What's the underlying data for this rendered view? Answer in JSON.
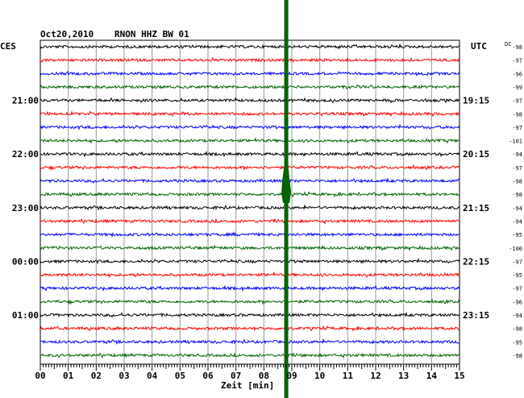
{
  "header": {
    "date": "Oct20,2010",
    "station": "RNON HHZ BW 01",
    "left_tz": "CES",
    "right_tz": "UTC",
    "dc_label": "DC"
  },
  "chart_data": {
    "type": "line",
    "title": "RNON HHZ BW 01",
    "xlabel": "Zeit [min]",
    "x_ticks": [
      "00",
      "01",
      "02",
      "03",
      "04",
      "05",
      "06",
      "07",
      "08",
      "09",
      "10",
      "11",
      "12",
      "13",
      "14",
      "15"
    ],
    "xlim": [
      0,
      15
    ],
    "grid": true,
    "trace_colors": [
      "#000000",
      "#ff0000",
      "#0000ff",
      "#006400"
    ],
    "left_time_labels": [
      {
        "row": 4,
        "label": "21:00"
      },
      {
        "row": 8,
        "label": "22:00"
      },
      {
        "row": 12,
        "label": "23:00"
      },
      {
        "row": 16,
        "label": "00:00"
      },
      {
        "row": 20,
        "label": "01:00"
      }
    ],
    "right_time_labels": [
      {
        "row": 4,
        "label": "19:15"
      },
      {
        "row": 8,
        "label": "20:15"
      },
      {
        "row": 12,
        "label": "21:15"
      },
      {
        "row": 16,
        "label": "22:15"
      },
      {
        "row": 20,
        "label": "23:15"
      }
    ],
    "dc_offsets": [
      -98,
      -97,
      -96,
      -99,
      -97,
      -98,
      -97,
      -101,
      -94,
      -97,
      -98,
      -98,
      -94,
      -94,
      -95,
      -100,
      -97,
      -95,
      -97,
      -96,
      -94,
      -98,
      -95,
      -98
    ],
    "event": {
      "minute": 8.8,
      "color": "#006400"
    }
  }
}
